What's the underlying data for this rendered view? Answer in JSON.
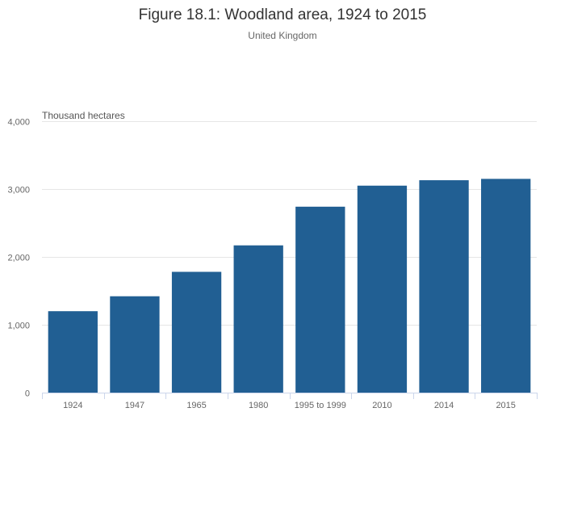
{
  "chart_data": {
    "type": "bar",
    "title": "Figure 18.1: Woodland area, 1924 to 2015",
    "subtitle": "United Kingdom",
    "ylabel": "Thousand hectares",
    "xlabel": "",
    "categories": [
      "1924",
      "1947",
      "1965",
      "1980",
      "1995 to 1999",
      "2010",
      "2014",
      "2015"
    ],
    "values": [
      1200,
      1420,
      1780,
      2170,
      2740,
      3050,
      3130,
      3150
    ],
    "ylim": [
      0,
      4000
    ],
    "yticks": [
      0,
      1000,
      2000,
      3000,
      4000
    ],
    "ytick_labels": [
      "0",
      "1,000",
      "2,000",
      "3,000",
      "4,000"
    ],
    "grid": true,
    "legend": "none",
    "colors": {
      "bar": "#215f93",
      "grid": "#e6e6e6",
      "axis": "#ccd6eb"
    }
  }
}
